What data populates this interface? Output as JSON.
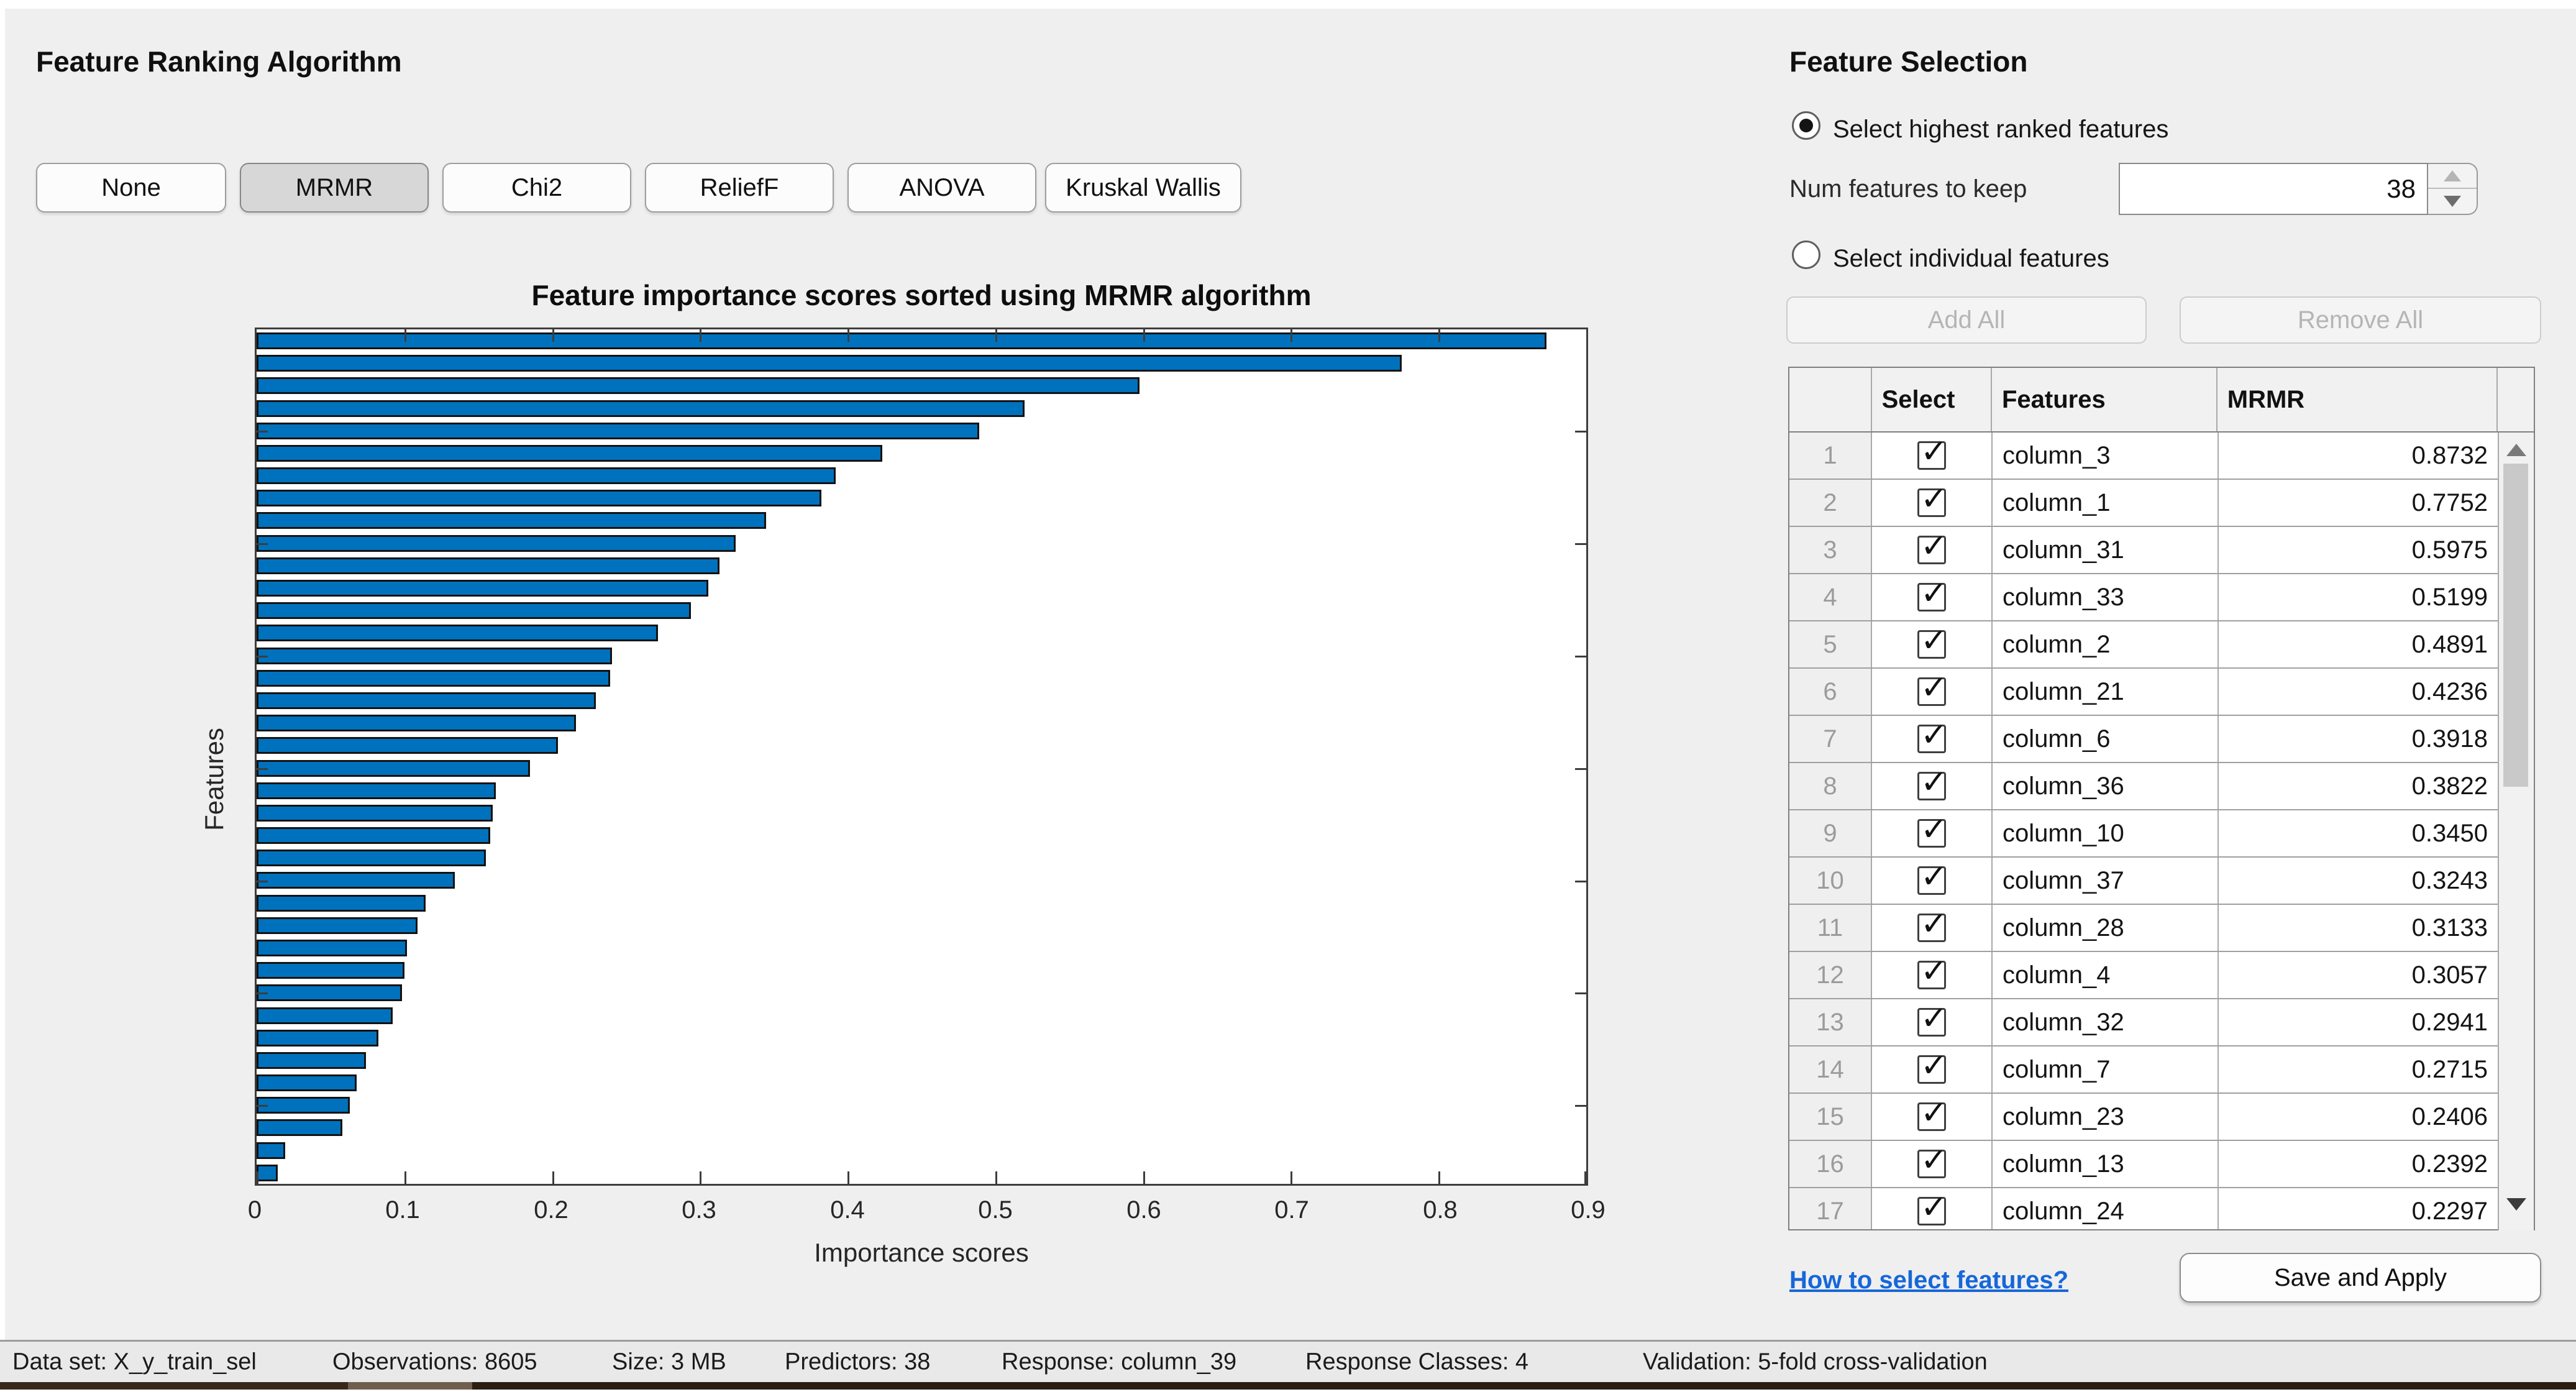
{
  "ranking": {
    "title": "Feature Ranking Algorithm",
    "buttons": [
      {
        "label": "None",
        "selected": false
      },
      {
        "label": "MRMR",
        "selected": true
      },
      {
        "label": "Chi2",
        "selected": false
      },
      {
        "label": "ReliefF",
        "selected": false
      },
      {
        "label": "ANOVA",
        "selected": false
      },
      {
        "label": "Kruskal Wallis",
        "selected": false
      }
    ]
  },
  "chart_data": {
    "type": "bar",
    "orientation": "horizontal",
    "title": "Feature importance scores sorted using MRMR algorithm",
    "xlabel": "Importance scores",
    "ylabel": "Features",
    "xlim": [
      0,
      0.9
    ],
    "x_tick_labels": [
      "0",
      "0.1",
      "0.2",
      "0.3",
      "0.4",
      "0.5",
      "0.6",
      "0.7",
      "0.8",
      "0.9"
    ],
    "bar_color": "#0072BD",
    "num_bars": 38,
    "values": [
      0.8732,
      0.7752,
      0.5975,
      0.5199,
      0.4891,
      0.4236,
      0.3918,
      0.3822,
      0.345,
      0.3243,
      0.3133,
      0.3057,
      0.2941,
      0.2715,
      0.2406,
      0.2392,
      0.2297,
      0.216,
      0.204,
      0.185,
      0.162,
      0.1597,
      0.158,
      0.155,
      0.134,
      0.1145,
      0.109,
      0.1016,
      0.1,
      0.0984,
      0.0919,
      0.0823,
      0.0742,
      0.0677,
      0.0629,
      0.0581,
      0.0194,
      0.0145
    ]
  },
  "selection": {
    "title": "Feature Selection",
    "radio_highest": {
      "label": "Select highest ranked features",
      "selected": true
    },
    "num_features": {
      "label": "Num features to keep",
      "value": "38"
    },
    "radio_individual": {
      "label": "Select individual features",
      "selected": false
    },
    "add_all_label": "Add All",
    "remove_all_label": "Remove All",
    "link_label": "How to select features?",
    "save_label": "Save and Apply"
  },
  "feature_table": {
    "headers": [
      "",
      "Select",
      "Features",
      "MRMR"
    ],
    "rows": [
      {
        "rank": "1",
        "checked": true,
        "feature": "column_3",
        "score": "0.8732"
      },
      {
        "rank": "2",
        "checked": true,
        "feature": "column_1",
        "score": "0.7752"
      },
      {
        "rank": "3",
        "checked": true,
        "feature": "column_31",
        "score": "0.5975"
      },
      {
        "rank": "4",
        "checked": true,
        "feature": "column_33",
        "score": "0.5199"
      },
      {
        "rank": "5",
        "checked": true,
        "feature": "column_2",
        "score": "0.4891"
      },
      {
        "rank": "6",
        "checked": true,
        "feature": "column_21",
        "score": "0.4236"
      },
      {
        "rank": "7",
        "checked": true,
        "feature": "column_6",
        "score": "0.3918"
      },
      {
        "rank": "8",
        "checked": true,
        "feature": "column_36",
        "score": "0.3822"
      },
      {
        "rank": "9",
        "checked": true,
        "feature": "column_10",
        "score": "0.3450"
      },
      {
        "rank": "10",
        "checked": true,
        "feature": "column_37",
        "score": "0.3243"
      },
      {
        "rank": "11",
        "checked": true,
        "feature": "column_28",
        "score": "0.3133"
      },
      {
        "rank": "12",
        "checked": true,
        "feature": "column_4",
        "score": "0.3057"
      },
      {
        "rank": "13",
        "checked": true,
        "feature": "column_32",
        "score": "0.2941"
      },
      {
        "rank": "14",
        "checked": true,
        "feature": "column_7",
        "score": "0.2715"
      },
      {
        "rank": "15",
        "checked": true,
        "feature": "column_23",
        "score": "0.2406"
      },
      {
        "rank": "16",
        "checked": true,
        "feature": "column_13",
        "score": "0.2392"
      },
      {
        "rank": "17",
        "checked": true,
        "feature": "column_24",
        "score": "0.2297"
      }
    ]
  },
  "status_bar": {
    "items": [
      "Data set: X_y_train_sel",
      "Observations: 8605",
      "Size: 3 MB",
      "Predictors: 38",
      "Response: column_39",
      "Response Classes: 4",
      "Validation: 5-fold cross-validation"
    ]
  },
  "colors": {
    "bar_blue": "#0072BD",
    "link_blue": "#1667d9",
    "panel_gray": "#efefef",
    "selected_button_gray": "#d7d7d7"
  }
}
